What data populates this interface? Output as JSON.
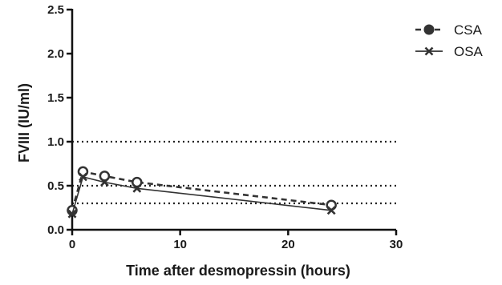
{
  "chart_data": {
    "type": "line",
    "title": "",
    "xlabel": "Time after desmopressin (hours)",
    "ylabel": "FVIII (IU/ml)",
    "xlim": [
      0,
      30
    ],
    "ylim": [
      0,
      2.5
    ],
    "x_ticks": [
      0,
      10,
      20,
      30
    ],
    "x_tick_labels": [
      "0",
      "10",
      "20",
      "30"
    ],
    "y_ticks": [
      0,
      0.5,
      1.0,
      1.5,
      2.0,
      2.5
    ],
    "y_tick_labels": [
      "0.0",
      "0.5",
      "1.0",
      "1.5",
      "2.0",
      "2.5"
    ],
    "grid": false,
    "legend_position": "top-right",
    "reference_lines": [
      1.0,
      0.5,
      0.3
    ],
    "series": [
      {
        "name": "CSA",
        "style": "dashed",
        "marker": "circle",
        "color": "#333333",
        "x": [
          0,
          1,
          3,
          6,
          24
        ],
        "y": [
          0.22,
          0.66,
          0.61,
          0.54,
          0.28
        ]
      },
      {
        "name": "OSA",
        "style": "solid",
        "marker": "x",
        "color": "#333333",
        "x": [
          0,
          1,
          3,
          6,
          24
        ],
        "y": [
          0.18,
          0.6,
          0.54,
          0.47,
          0.22
        ]
      }
    ]
  }
}
